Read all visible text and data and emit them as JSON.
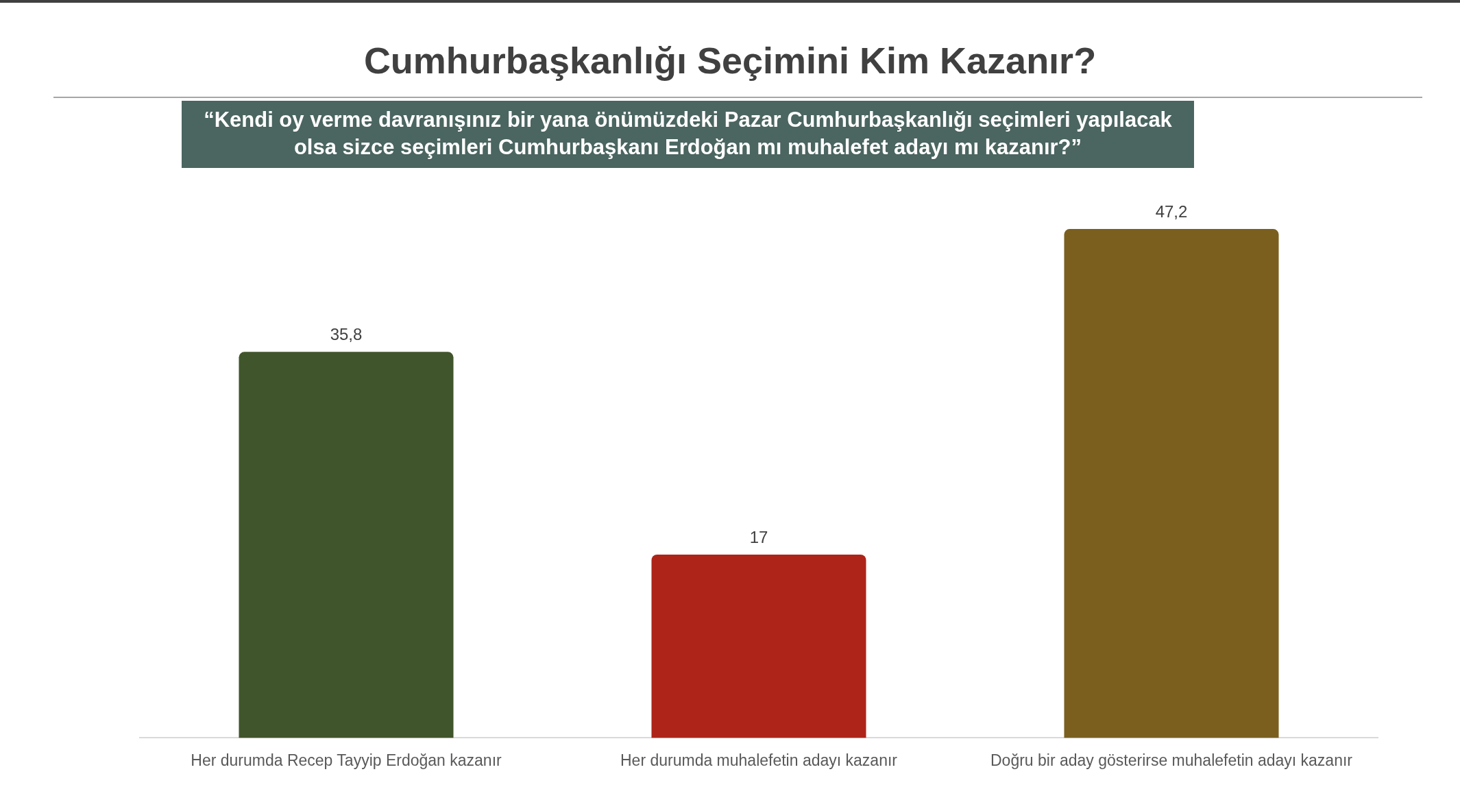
{
  "chart_data": {
    "type": "bar",
    "title": "Cumhurbaşkanlığı Seçimini Kim Kazanır?",
    "subtitle": "“Kendi oy verme davranışınız bir yana önümüzdeki Pazar Cumhurbaşkanlığı seçimleri yapılacak olsa sizce seçimleri Cumhurbaşkanı Erdoğan mı muhalefet adayı mı kazanır?”",
    "categories": [
      "Her durumda Recep Tayyip Erdoğan kazanır",
      "Her durumda muhalefetin adayı kazanır",
      "Doğru bir aday gösterirse muhalefetin adayı kazanır"
    ],
    "values": [
      35.8,
      17,
      47.2
    ],
    "colors": [
      "#40552b",
      "#ae2419",
      "#7a5f1f"
    ],
    "value_labels": [
      "35,8",
      "17",
      "47,2"
    ]
  }
}
